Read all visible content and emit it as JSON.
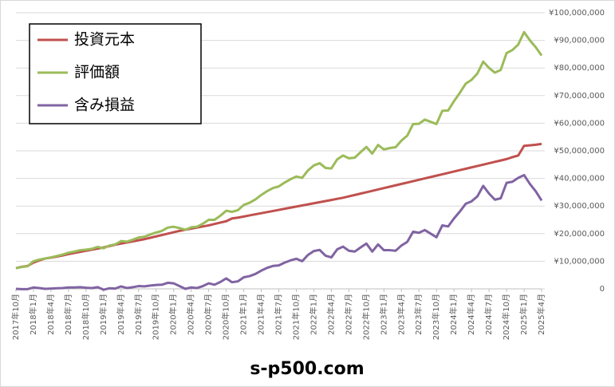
{
  "chart_data": {
    "type": "line",
    "categories": [
      "2017年10月",
      null,
      null,
      "2018年1月",
      null,
      null,
      "2018年4月",
      null,
      null,
      "2018年7月",
      null,
      null,
      "2018年10月",
      null,
      null,
      "2019年1月",
      null,
      null,
      "2019年4月",
      null,
      null,
      "2019年7月",
      null,
      null,
      "2019年10月",
      null,
      null,
      "2020年1月",
      null,
      null,
      "2020年4月",
      null,
      null,
      "2020年7月",
      null,
      null,
      "2020年10月",
      null,
      null,
      "2021年1月",
      null,
      null,
      "2021年4月",
      null,
      null,
      "2021年7月",
      null,
      null,
      "2021年10月",
      null,
      null,
      "2022年1月",
      null,
      null,
      "2022年4月",
      null,
      null,
      "2022年7月",
      null,
      null,
      "2022年10月",
      null,
      null,
      "2023年1月",
      null,
      null,
      "2023年4月",
      null,
      null,
      "2023年7月",
      null,
      null,
      "2023年10月",
      null,
      null,
      "2024年1月",
      null,
      null,
      "2024年4月",
      null,
      null,
      "2024年7月",
      null,
      null,
      "2024年10月",
      null,
      null,
      "2025年1月",
      null,
      null,
      "2025年4月"
    ],
    "series": [
      {
        "name": "投資元本",
        "color": "#c0504d",
        "values": [
          7500000,
          8000000,
          8300000,
          9500000,
          10300000,
          11000000,
          11300000,
          11700000,
          12100000,
          12600000,
          13000000,
          13400000,
          13800000,
          14200000,
          14600000,
          15000000,
          15500000,
          16000000,
          16400000,
          16800000,
          17200000,
          17600000,
          18000000,
          18500000,
          19000000,
          19500000,
          20000000,
          20500000,
          21000000,
          21400000,
          21800000,
          22200000,
          22600000,
          23000000,
          23500000,
          24000000,
          24500000,
          25500000,
          25800000,
          26200000,
          26600000,
          27000000,
          27400000,
          27800000,
          28200000,
          28600000,
          29000000,
          29400000,
          29800000,
          30200000,
          30600000,
          31000000,
          31400000,
          31800000,
          32200000,
          32600000,
          33000000,
          33500000,
          34000000,
          34500000,
          35000000,
          35500000,
          36000000,
          36500000,
          37000000,
          37500000,
          38000000,
          38500000,
          39000000,
          39500000,
          40000000,
          40500000,
          41000000,
          41500000,
          42000000,
          42500000,
          43000000,
          43500000,
          44000000,
          44500000,
          45000000,
          45500000,
          46000000,
          46500000,
          47000000,
          47700000,
          48300000,
          51800000,
          52000000,
          52200000,
          52500000
        ]
      },
      {
        "name": "評価額",
        "color": "#9bbb59",
        "values": [
          7500000,
          7900000,
          8200000,
          10000000,
          10600000,
          11000000,
          11400000,
          11900000,
          12400000,
          13100000,
          13500000,
          14000000,
          14200000,
          14500000,
          15200000,
          14700000,
          15700000,
          16100000,
          17300000,
          17100000,
          17800000,
          18600000,
          18900000,
          19700000,
          20400000,
          21000000,
          22200000,
          22500000,
          22000000,
          21400000,
          22300000,
          22500000,
          23600000,
          25000000,
          25000000,
          26500000,
          28300000,
          27900000,
          28500000,
          30400000,
          31200000,
          32400000,
          34000000,
          35400000,
          36500000,
          37100000,
          38500000,
          39700000,
          40700000,
          40200000,
          42900000,
          44700000,
          45500000,
          43800000,
          43600000,
          46900000,
          48300000,
          47300000,
          47500000,
          49500000,
          51400000,
          49000000,
          52100000,
          50500000,
          51000000,
          51300000,
          53700000,
          55500000,
          59700000,
          59800000,
          61300000,
          60500000,
          59700000,
          64500000,
          64600000,
          68000000,
          71000000,
          74300000,
          75700000,
          78000000,
          82300000,
          80000000,
          78300000,
          79300000,
          85400000,
          86500000,
          88500000,
          93000000,
          90000000,
          87500000,
          84500000
        ]
      },
      {
        "name": "含み損益",
        "color": "#8064a2",
        "values": [
          0,
          -100000,
          -100000,
          500000,
          300000,
          0,
          100000,
          200000,
          300000,
          500000,
          500000,
          600000,
          400000,
          300000,
          600000,
          -300000,
          200000,
          100000,
          900000,
          300000,
          600000,
          1000000,
          900000,
          1200000,
          1400000,
          1500000,
          2200000,
          2000000,
          1000000,
          0,
          500000,
          300000,
          1000000,
          2000000,
          1500000,
          2500000,
          3800000,
          2400000,
          2700000,
          4200000,
          4600000,
          5400000,
          6600000,
          7600000,
          8300000,
          8500000,
          9500000,
          10300000,
          10900000,
          10000000,
          12300000,
          13700000,
          14100000,
          12000000,
          11400000,
          14300000,
          15300000,
          13800000,
          13500000,
          15000000,
          16400000,
          13500000,
          16100000,
          14000000,
          14000000,
          13800000,
          15700000,
          17000000,
          20700000,
          20300000,
          21300000,
          20000000,
          18700000,
          23000000,
          22600000,
          25500000,
          28000000,
          30800000,
          31700000,
          33500000,
          37300000,
          34500000,
          32300000,
          32800000,
          38400000,
          38800000,
          40200000,
          41200000,
          38000000,
          35300000,
          32000000
        ]
      }
    ],
    "ylim": [
      0,
      100000000
    ],
    "yticks": [
      0,
      {
        "value": 10000000,
        "label": "¥10,000,000"
      },
      {
        "value": 20000000,
        "label": "¥20,000,000"
      },
      {
        "value": 30000000,
        "label": "¥30,000,000"
      },
      {
        "value": 40000000,
        "label": "¥40,000,000"
      },
      {
        "value": 50000000,
        "label": "¥50,000,000"
      },
      {
        "value": 60000000,
        "label": "¥60,000,000"
      },
      {
        "value": 70000000,
        "label": "¥70,000,000"
      },
      {
        "value": 80000000,
        "label": "¥80,000,000"
      },
      {
        "value": 90000000,
        "label": "¥90,000,000"
      },
      {
        "value": 100000000,
        "label": "¥100,000,000"
      }
    ],
    "grid": true,
    "legend": "top-left",
    "footer": "s-p500.com"
  }
}
